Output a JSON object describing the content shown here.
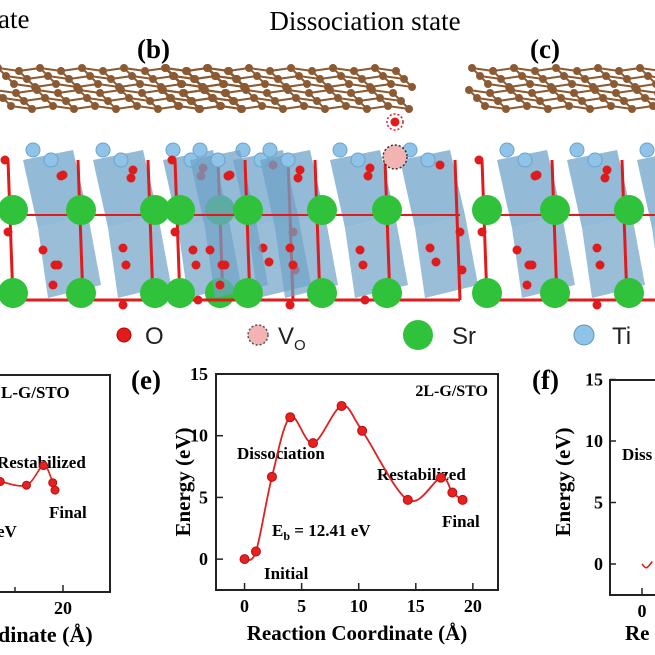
{
  "figure": {
    "panel_a_title_fragment": "ate",
    "panel_b_title": "Dissociation state",
    "panel_b_label": "(b)",
    "panel_c_label": "(c)",
    "panel_e_label": "(e)",
    "panel_f_label": "(f)",
    "legend": [
      {
        "symbol": "O",
        "color": "#e01b1b"
      },
      {
        "symbol": "V",
        "subscript": "O",
        "color": "#f2b3b3"
      },
      {
        "symbol": "Sr",
        "color": "#2fc23a"
      },
      {
        "symbol": "Ti",
        "color": "#8fc4e8"
      }
    ],
    "colors": {
      "carbon": "#8b5a32",
      "oxygen": "#e01b1b",
      "strontium": "#2fc23a",
      "titanium": "#8fc4e8",
      "octahedra": "#6fa3c8",
      "curve": "#e02020"
    }
  },
  "chart_data": [
    {
      "panel": "d",
      "type": "line",
      "annotations": [
        "L-G/STO",
        "Restabilized",
        "Final",
        "eV"
      ],
      "xlabel_fragment": "dinate (Å)",
      "x_ticks": [
        20
      ],
      "x": [
        14.5,
        16.8,
        18.3,
        19.1,
        19.3
      ],
      "y": [
        6.3,
        6.0,
        7.6,
        6.2,
        5.6
      ]
    },
    {
      "panel": "e",
      "type": "line",
      "title": "2L-G/STO",
      "xlabel": "Reaction Coordinate (Å)",
      "ylabel": "Energy (eV)",
      "xlim": [
        -2.5,
        22.2
      ],
      "ylim": [
        -2.5,
        15
      ],
      "x_ticks": [
        0,
        5,
        10,
        15,
        20
      ],
      "y_ticks": [
        0,
        5,
        10,
        15
      ],
      "x": [
        0,
        1.0,
        2.4,
        4.0,
        6.0,
        8.5,
        10.3,
        14.3,
        17.2,
        18.2,
        19.1
      ],
      "y": [
        0,
        0.62,
        6.67,
        11.5,
        9.4,
        12.41,
        10.4,
        4.8,
        6.6,
        5.4,
        4.8
      ],
      "annotations": {
        "initial": "Initial",
        "dissociation": "Dissociation",
        "restabilized": "Restabilized",
        "final": "Final",
        "barrier_prefix": "E",
        "barrier_sub": "b",
        "barrier_value": " = 12.41 eV"
      }
    },
    {
      "panel": "f",
      "type": "line",
      "ylabel": "Energy (eV)",
      "xlabel_fragment": "Re",
      "y_ticks": [
        0,
        5,
        10,
        15
      ],
      "x_ticks": [
        0
      ],
      "annotations": [
        "Diss"
      ],
      "x": [
        0,
        0.4,
        0.9
      ],
      "y": [
        0,
        -0.3,
        0.2
      ]
    }
  ]
}
